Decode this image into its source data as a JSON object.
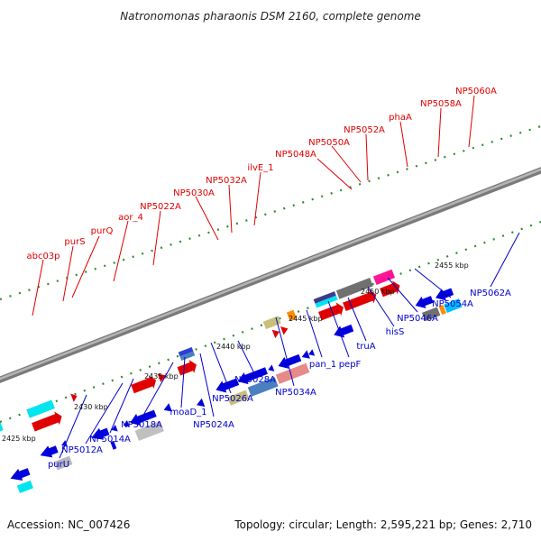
{
  "title": "Natronomonas pharaonis DSM 2160, complete genome",
  "footer": {
    "accession": "Accession: NC_007426",
    "summary": "Topology: circular; Length: 2,595,221 bp; Genes: 2,710"
  },
  "colors": {
    "top_strand": "#e00000",
    "bottom_strand": "#0000cc",
    "backbone": "#999999",
    "dots": "#2e8b2e"
  },
  "ticks": [
    "2425 kbp",
    "2430 kbp",
    "2435 kbp",
    "2440 kbp",
    "2445 kbp",
    "2450 kbp",
    "2455 kbp"
  ],
  "top_labels": [
    "abc03p",
    "purS",
    "purQ",
    "aor_4",
    "NP5022A",
    "NP5030A",
    "NP5032A",
    "ilvE_1",
    "NP5048A",
    "NP5050A",
    "NP5052A",
    "phaA",
    "NP5058A",
    "NP5060A"
  ],
  "bottom_labels": [
    "purU",
    "NP5012A",
    "NP5014A",
    "NP5018A",
    "moaD_1",
    "NP5024A",
    "NP5026A",
    "NP5028A",
    "NP5034A",
    "pan_1",
    "pepF",
    "truA",
    "hisS",
    "NP5046A",
    "NP5054A",
    "NP5062A"
  ]
}
